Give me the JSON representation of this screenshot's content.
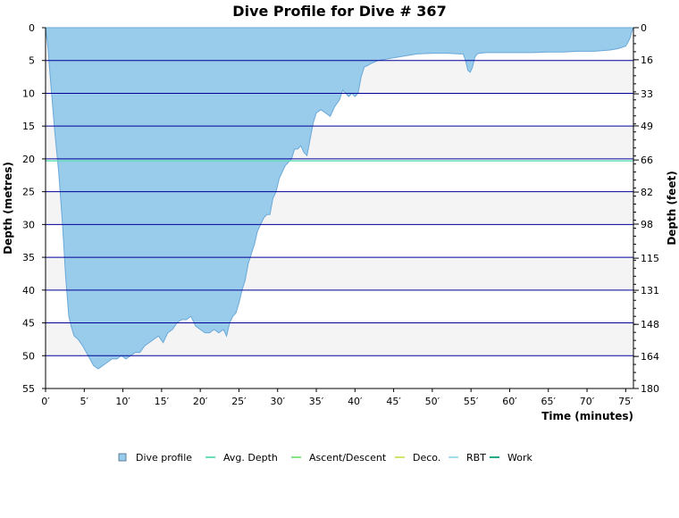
{
  "chart_data": {
    "type": "area",
    "title": "Dive Profile for Dive # 367",
    "xlabel": "Time (minutes)",
    "ylabel_left": "Depth (metres)",
    "ylabel_right": "Depth (feet)",
    "xlim": [
      0,
      76
    ],
    "ylim_m": [
      0,
      55
    ],
    "ylim_ft": [
      0,
      180
    ],
    "y_inverted": true,
    "x_ticks": [
      0,
      5,
      10,
      15,
      20,
      25,
      30,
      35,
      40,
      45,
      50,
      55,
      60,
      65,
      70,
      75
    ],
    "x_tick_labels": [
      "0′",
      "5′",
      "10′",
      "15′",
      "20′",
      "25′",
      "30′",
      "35′",
      "40′",
      "45′",
      "50′",
      "55′",
      "60′",
      "65′",
      "70′",
      "75′"
    ],
    "y_ticks_m": [
      0,
      5,
      10,
      15,
      20,
      25,
      30,
      35,
      40,
      45,
      50,
      55
    ],
    "y_tick_labels_m": [
      "0",
      "5",
      "10",
      "15",
      "20",
      "25",
      "30",
      "35",
      "40",
      "45",
      "50",
      "55"
    ],
    "y_ticks_ft": [
      0,
      16,
      33,
      49,
      66,
      82,
      98,
      115,
      131,
      148,
      164,
      180
    ],
    "y_tick_labels_ft": [
      "0",
      "16",
      "33",
      "49",
      "66",
      "82",
      "98",
      "115",
      "131",
      "148",
      "164",
      "180"
    ],
    "grid": true,
    "legend_position": "bottom-center",
    "series": [
      {
        "name": "Dive profile",
        "color": "#99cceb",
        "x": [
          0,
          0.3,
          0.7,
          1.2,
          1.7,
          2.2,
          2.6,
          3.0,
          3.3,
          3.7,
          4.2,
          4.8,
          5.5,
          6.2,
          6.8,
          7.4,
          8.0,
          8.6,
          9.2,
          9.8,
          10.4,
          11.0,
          11.6,
          12.2,
          12.8,
          13.4,
          14.0,
          14.6,
          15.2,
          15.8,
          16.4,
          17.0,
          17.6,
          18.2,
          18.8,
          19.4,
          20.0,
          20.6,
          21.2,
          21.8,
          22.4,
          23.0,
          23.4,
          23.8,
          24.2,
          24.6,
          25.0,
          25.4,
          25.8,
          26.2,
          26.6,
          27.0,
          27.4,
          27.8,
          28.2,
          28.6,
          29.0,
          29.4,
          29.8,
          30.2,
          30.6,
          31.0,
          31.4,
          31.8,
          32.2,
          32.6,
          33.0,
          33.4,
          33.8,
          34.2,
          34.6,
          35.0,
          35.6,
          36.2,
          36.8,
          37.4,
          38.0,
          38.4,
          38.8,
          39.2,
          39.6,
          40.0,
          40.4,
          40.8,
          41.2,
          41.6,
          42.0,
          43.0,
          44.0,
          45.0,
          46.0,
          47.0,
          48.0,
          50.0,
          52.0,
          53.5,
          54.0,
          54.3,
          54.6,
          54.9,
          55.2,
          55.5,
          55.8,
          56.1,
          57.0,
          59.0,
          61.0,
          63.0,
          65.0,
          67.0,
          69.0,
          71.0,
          73.0,
          74.0,
          74.5,
          75.0,
          75.3,
          75.6,
          75.8,
          76.0
        ],
        "y": [
          0,
          3,
          9,
          16,
          22,
          30,
          38,
          44,
          45.5,
          47,
          47.5,
          48.5,
          50,
          51.5,
          52,
          51.5,
          51,
          50.5,
          50.5,
          50,
          50.5,
          50,
          49.5,
          49.5,
          48.5,
          48,
          47.5,
          47,
          48,
          46.5,
          46,
          45,
          44.5,
          44.5,
          44,
          45.5,
          46,
          46.5,
          46.5,
          46,
          46.5,
          46,
          47,
          45,
          44,
          43.5,
          42,
          40,
          38.5,
          36,
          34.5,
          33,
          31,
          30,
          29,
          28.5,
          28.5,
          26,
          25,
          23,
          22,
          21,
          20.5,
          20,
          18.5,
          18.5,
          18,
          19,
          19.5,
          17,
          14.5,
          13,
          12.5,
          13,
          13.5,
          12,
          11,
          9.5,
          10,
          10.5,
          10,
          10.5,
          10,
          7.5,
          6,
          5.8,
          5.5,
          5,
          4.8,
          4.6,
          4.4,
          4.2,
          4.0,
          3.9,
          3.9,
          4.0,
          4.0,
          5.0,
          6.5,
          6.8,
          6.0,
          4.5,
          4.0,
          3.9,
          3.8,
          3.8,
          3.8,
          3.8,
          3.7,
          3.7,
          3.6,
          3.6,
          3.4,
          3.2,
          3.0,
          2.8,
          2.2,
          1.5,
          0.5,
          0
        ]
      },
      {
        "name": "Avg. Depth",
        "color": "#66ddbb",
        "type": "hline",
        "value": 20.3
      },
      {
        "name": "Ascent/Descent",
        "color": "#88e288"
      },
      {
        "name": "Deco.",
        "color": "#d4e26a"
      },
      {
        "name": "RBT",
        "color": "#a4dcf2"
      },
      {
        "name": "Work",
        "color": "#22aa88"
      }
    ],
    "colors": {
      "grid_line": "#000099",
      "band_fill": "#f4f4f4",
      "area_stroke": "#6aa8d8"
    }
  }
}
